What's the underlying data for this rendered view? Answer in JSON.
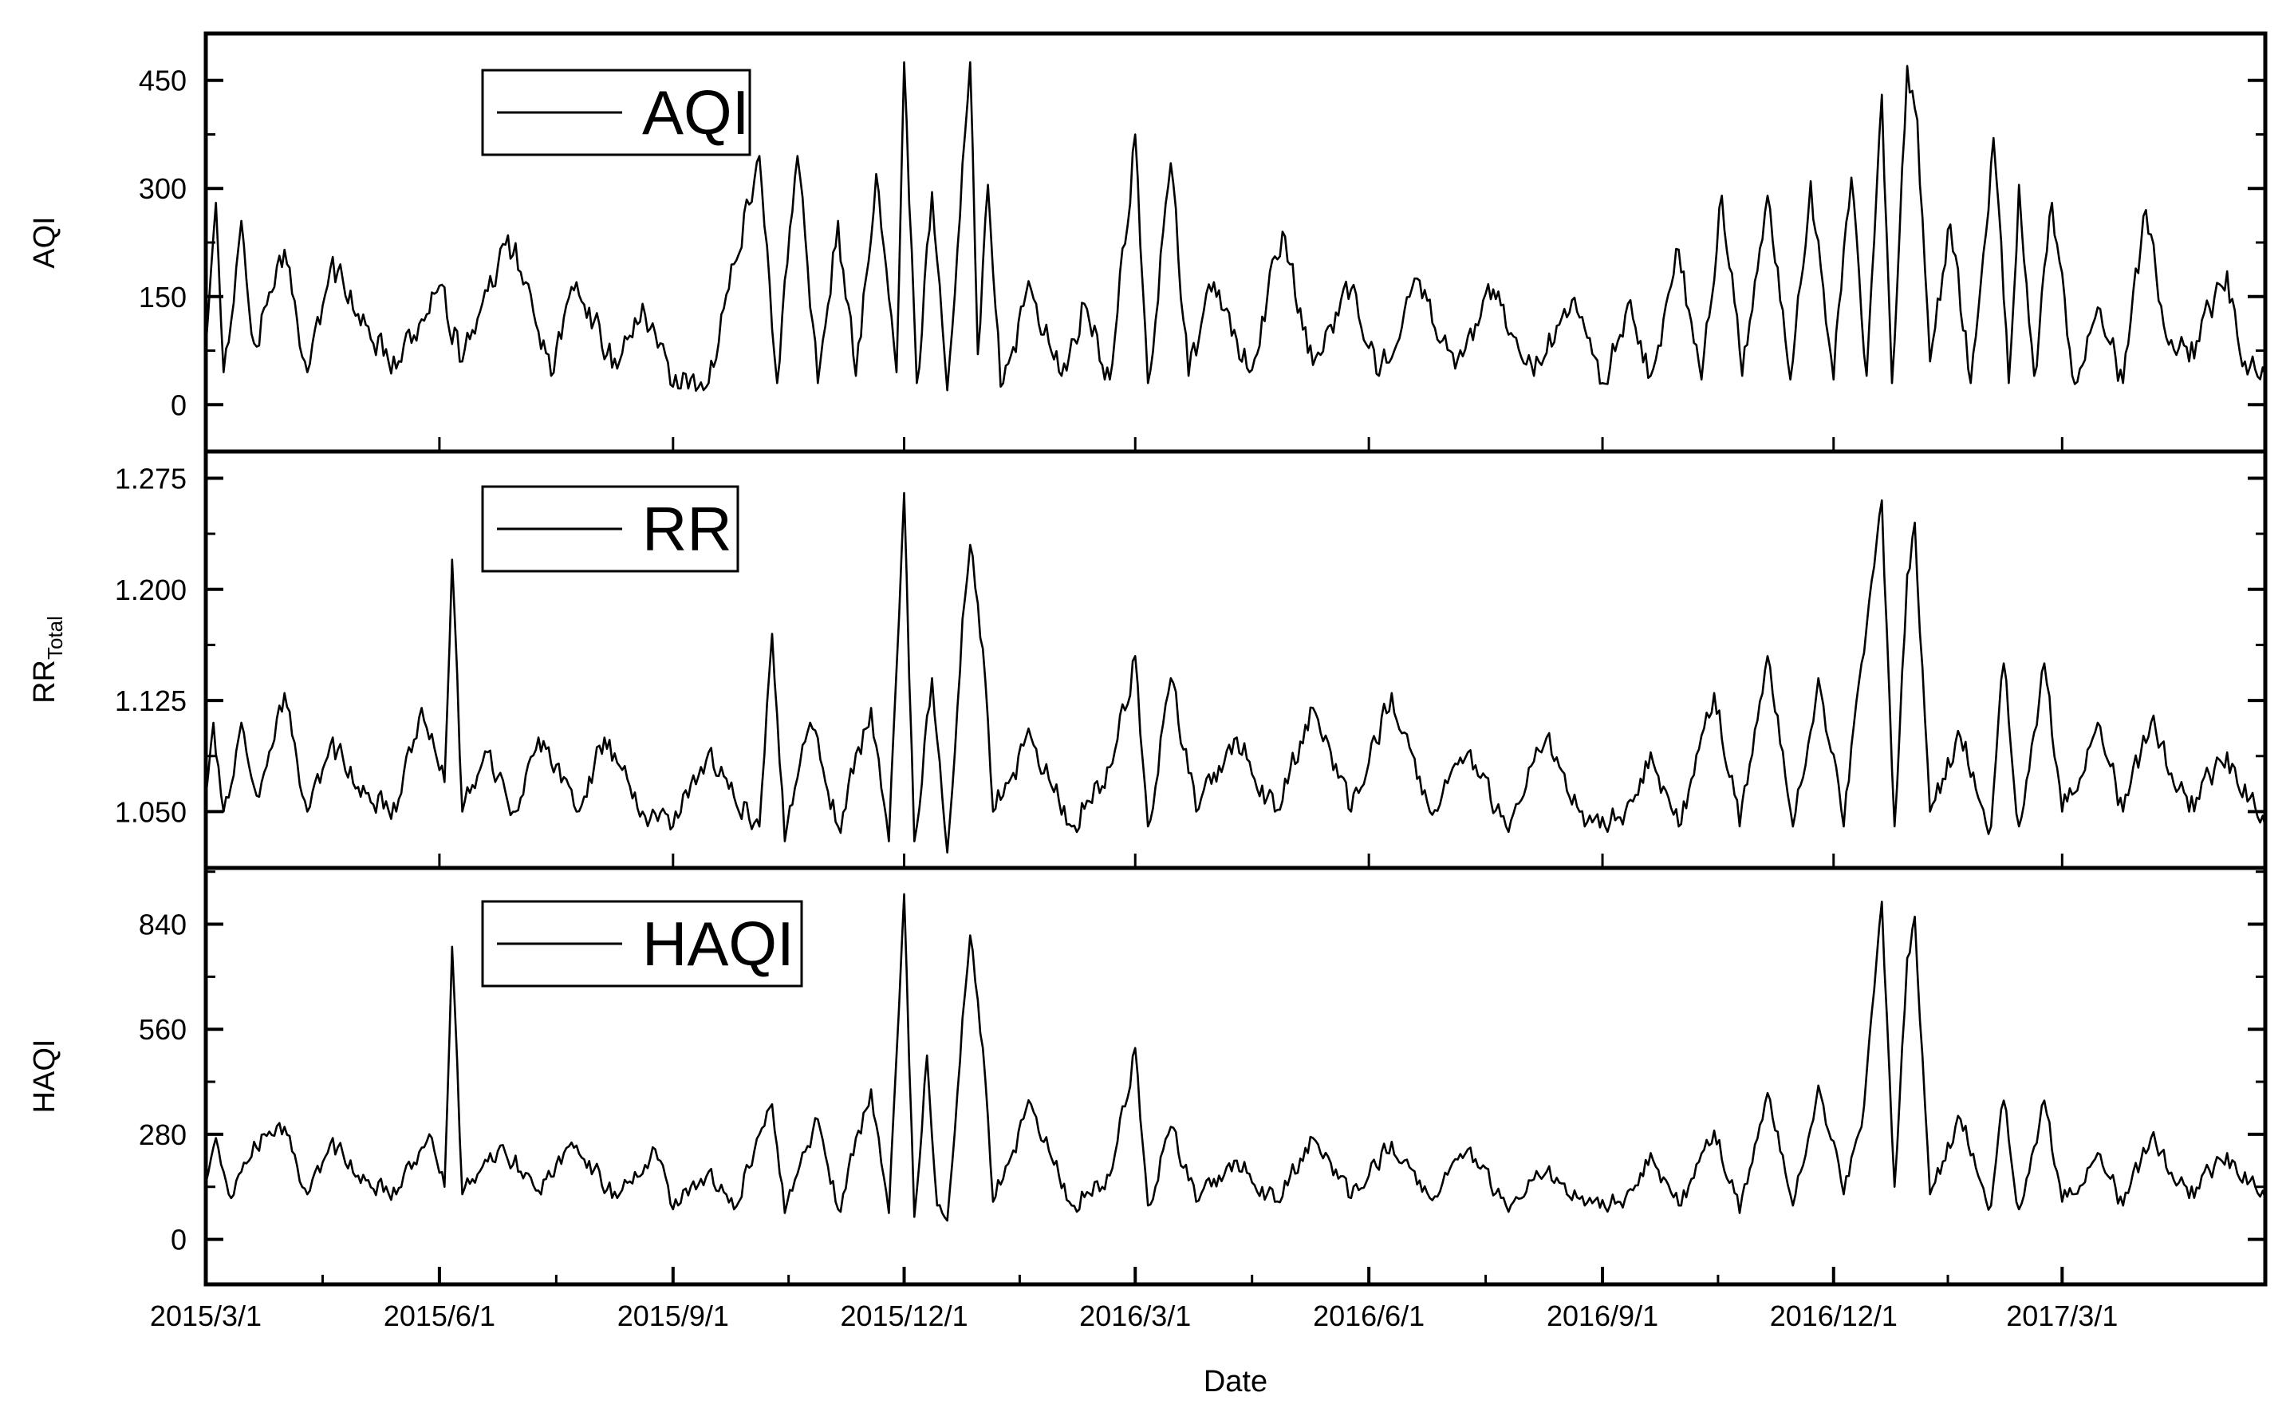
{
  "chart_data": {
    "type": "line",
    "xlabel": "Date",
    "x_range": [
      "2015-03-01",
      "2017-05-20"
    ],
    "x_tick_labels": [
      "2015/3/1",
      "2015/6/1",
      "2015/9/1",
      "2015/12/1",
      "2016/3/1",
      "2016/6/1",
      "2016/9/1",
      "2016/12/1",
      "2017/3/1"
    ],
    "x_tick_dates": [
      "2015-03-01",
      "2015-06-01",
      "2015-09-01",
      "2015-12-01",
      "2016-03-01",
      "2016-06-01",
      "2016-09-01",
      "2016-12-01",
      "2017-03-01"
    ],
    "grid": false,
    "legend_position": "top-left",
    "panels": [
      {
        "id": "aqi",
        "ylabel": "AQI",
        "ylabel_sub": "",
        "legend": "AQI",
        "ylim": [
          -65,
          515
        ],
        "yticks": [
          0,
          150,
          300,
          450
        ],
        "ytick_labels": [
          "0",
          "150",
          "300",
          "450"
        ],
        "key_points": [
          [
            "2015-03-01",
            80
          ],
          [
            "2015-03-05",
            280
          ],
          [
            "2015-03-08",
            45
          ],
          [
            "2015-03-15",
            255
          ],
          [
            "2015-03-20",
            85
          ],
          [
            "2015-04-01",
            215
          ],
          [
            "2015-04-10",
            45
          ],
          [
            "2015-04-20",
            205
          ],
          [
            "2015-05-01",
            110
          ],
          [
            "2015-05-15",
            50
          ],
          [
            "2015-06-01",
            165
          ],
          [
            "2015-06-10",
            60
          ],
          [
            "2015-06-28",
            235
          ],
          [
            "2015-07-05",
            170
          ],
          [
            "2015-07-15",
            40
          ],
          [
            "2015-07-25",
            170
          ],
          [
            "2015-08-10",
            50
          ],
          [
            "2015-08-20",
            140
          ],
          [
            "2015-09-01",
            25
          ],
          [
            "2015-09-15",
            30
          ],
          [
            "2015-09-25",
            195
          ],
          [
            "2015-10-05",
            345
          ],
          [
            "2015-10-12",
            30
          ],
          [
            "2015-10-20",
            345
          ],
          [
            "2015-10-28",
            30
          ],
          [
            "2015-11-05",
            255
          ],
          [
            "2015-11-12",
            40
          ],
          [
            "2015-11-20",
            320
          ],
          [
            "2015-11-28",
            45
          ],
          [
            "2015-12-01",
            475
          ],
          [
            "2015-12-06",
            30
          ],
          [
            "2015-12-12",
            295
          ],
          [
            "2015-12-18",
            20
          ],
          [
            "2015-12-24",
            335
          ],
          [
            "2015-12-27",
            475
          ],
          [
            "2015-12-30",
            70
          ],
          [
            "2016-01-03",
            305
          ],
          [
            "2016-01-08",
            25
          ],
          [
            "2016-01-20",
            160
          ],
          [
            "2016-02-01",
            40
          ],
          [
            "2016-02-10",
            140
          ],
          [
            "2016-02-20",
            35
          ],
          [
            "2016-03-01",
            375
          ],
          [
            "2016-03-06",
            30
          ],
          [
            "2016-03-15",
            335
          ],
          [
            "2016-03-22",
            40
          ],
          [
            "2016-04-01",
            170
          ],
          [
            "2016-04-15",
            45
          ],
          [
            "2016-04-28",
            240
          ],
          [
            "2016-05-10",
            55
          ],
          [
            "2016-05-25",
            160
          ],
          [
            "2016-06-05",
            40
          ],
          [
            "2016-06-20",
            175
          ],
          [
            "2016-07-05",
            50
          ],
          [
            "2016-07-20",
            160
          ],
          [
            "2016-08-05",
            40
          ],
          [
            "2016-08-20",
            145
          ],
          [
            "2016-09-01",
            30
          ],
          [
            "2016-09-12",
            145
          ],
          [
            "2016-09-20",
            40
          ],
          [
            "2016-10-01",
            215
          ],
          [
            "2016-10-10",
            35
          ],
          [
            "2016-10-18",
            290
          ],
          [
            "2016-10-26",
            40
          ],
          [
            "2016-11-05",
            290
          ],
          [
            "2016-11-14",
            35
          ],
          [
            "2016-11-22",
            310
          ],
          [
            "2016-12-01",
            35
          ],
          [
            "2016-12-08",
            315
          ],
          [
            "2016-12-14",
            40
          ],
          [
            "2016-12-20",
            430
          ],
          [
            "2016-12-24",
            30
          ],
          [
            "2016-12-30",
            470
          ],
          [
            "2017-01-03",
            395
          ],
          [
            "2017-01-08",
            60
          ],
          [
            "2017-01-16",
            250
          ],
          [
            "2017-01-24",
            30
          ],
          [
            "2017-02-02",
            370
          ],
          [
            "2017-02-08",
            30
          ],
          [
            "2017-02-12",
            305
          ],
          [
            "2017-02-18",
            40
          ],
          [
            "2017-02-25",
            280
          ],
          [
            "2017-03-05",
            40
          ],
          [
            "2017-03-15",
            135
          ],
          [
            "2017-03-25",
            30
          ],
          [
            "2017-04-03",
            270
          ],
          [
            "2017-04-10",
            110
          ],
          [
            "2017-04-20",
            60
          ],
          [
            "2017-05-05",
            185
          ],
          [
            "2017-05-12",
            60
          ],
          [
            "2017-05-20",
            40
          ]
        ]
      },
      {
        "id": "rr",
        "ylabel": "RR",
        "ylabel_sub": "Total",
        "legend": "RR",
        "ylim": [
          1.012,
          1.293
        ],
        "yticks": [
          1.05,
          1.125,
          1.2,
          1.275
        ],
        "ytick_labels": [
          "1.050",
          "1.125",
          "1.200",
          "1.275"
        ],
        "key_points": [
          [
            "2015-03-01",
            1.06
          ],
          [
            "2015-03-04",
            1.11
          ],
          [
            "2015-03-08",
            1.05
          ],
          [
            "2015-03-15",
            1.11
          ],
          [
            "2015-03-22",
            1.06
          ],
          [
            "2015-04-01",
            1.13
          ],
          [
            "2015-04-10",
            1.05
          ],
          [
            "2015-04-20",
            1.1
          ],
          [
            "2015-05-01",
            1.06
          ],
          [
            "2015-05-15",
            1.05
          ],
          [
            "2015-05-25",
            1.12
          ],
          [
            "2015-06-03",
            1.07
          ],
          [
            "2015-06-06",
            1.22
          ],
          [
            "2015-06-10",
            1.05
          ],
          [
            "2015-06-20",
            1.09
          ],
          [
            "2015-07-01",
            1.05
          ],
          [
            "2015-07-10",
            1.1
          ],
          [
            "2015-07-25",
            1.05
          ],
          [
            "2015-08-05",
            1.1
          ],
          [
            "2015-08-20",
            1.05
          ],
          [
            "2015-09-01",
            1.04
          ],
          [
            "2015-09-15",
            1.09
          ],
          [
            "2015-09-25",
            1.06
          ],
          [
            "2015-10-05",
            1.04
          ],
          [
            "2015-10-10",
            1.17
          ],
          [
            "2015-10-15",
            1.03
          ],
          [
            "2015-10-25",
            1.11
          ],
          [
            "2015-11-05",
            1.04
          ],
          [
            "2015-11-18",
            1.12
          ],
          [
            "2015-11-25",
            1.03
          ],
          [
            "2015-12-01",
            1.265
          ],
          [
            "2015-12-05",
            1.03
          ],
          [
            "2015-12-12",
            1.14
          ],
          [
            "2015-12-18",
            1.02
          ],
          [
            "2015-12-24",
            1.18
          ],
          [
            "2015-12-27",
            1.23
          ],
          [
            "2016-01-01",
            1.16
          ],
          [
            "2016-01-05",
            1.05
          ],
          [
            "2016-01-20",
            1.1
          ],
          [
            "2016-02-05",
            1.04
          ],
          [
            "2016-02-20",
            1.08
          ],
          [
            "2016-03-01",
            1.155
          ],
          [
            "2016-03-06",
            1.04
          ],
          [
            "2016-03-15",
            1.14
          ],
          [
            "2016-03-25",
            1.05
          ],
          [
            "2016-04-10",
            1.1
          ],
          [
            "2016-04-25",
            1.05
          ],
          [
            "2016-05-10",
            1.12
          ],
          [
            "2016-05-25",
            1.05
          ],
          [
            "2016-06-10",
            1.13
          ],
          [
            "2016-06-25",
            1.05
          ],
          [
            "2016-07-10",
            1.09
          ],
          [
            "2016-07-25",
            1.04
          ],
          [
            "2016-08-10",
            1.1
          ],
          [
            "2016-08-25",
            1.04
          ],
          [
            "2016-09-10",
            1.05
          ],
          [
            "2016-09-20",
            1.09
          ],
          [
            "2016-10-01",
            1.04
          ],
          [
            "2016-10-15",
            1.13
          ],
          [
            "2016-10-25",
            1.04
          ],
          [
            "2016-11-05",
            1.155
          ],
          [
            "2016-11-15",
            1.04
          ],
          [
            "2016-11-25",
            1.14
          ],
          [
            "2016-12-05",
            1.04
          ],
          [
            "2016-12-12",
            1.15
          ],
          [
            "2016-12-20",
            1.26
          ],
          [
            "2016-12-25",
            1.04
          ],
          [
            "2016-12-30",
            1.21
          ],
          [
            "2017-01-02",
            1.245
          ],
          [
            "2017-01-08",
            1.05
          ],
          [
            "2017-01-20",
            1.1
          ],
          [
            "2017-02-01",
            1.04
          ],
          [
            "2017-02-06",
            1.15
          ],
          [
            "2017-02-12",
            1.04
          ],
          [
            "2017-02-22",
            1.15
          ],
          [
            "2017-03-01",
            1.05
          ],
          [
            "2017-03-15",
            1.11
          ],
          [
            "2017-03-25",
            1.05
          ],
          [
            "2017-04-05",
            1.11
          ],
          [
            "2017-04-20",
            1.05
          ],
          [
            "2017-05-05",
            1.09
          ],
          [
            "2017-05-20",
            1.04
          ]
        ]
      },
      {
        "id": "haqi",
        "ylabel": "HAQI",
        "ylabel_sub": "",
        "legend": "HAQI",
        "ylim": [
          -120,
          990
        ],
        "yticks": [
          0,
          280,
          560,
          840
        ],
        "ytick_labels": [
          "0",
          "280",
          "560",
          "840"
        ],
        "key_points": [
          [
            "2015-03-01",
            150
          ],
          [
            "2015-03-05",
            270
          ],
          [
            "2015-03-10",
            120
          ],
          [
            "2015-03-20",
            260
          ],
          [
            "2015-04-01",
            300
          ],
          [
            "2015-04-10",
            120
          ],
          [
            "2015-04-20",
            270
          ],
          [
            "2015-05-01",
            150
          ],
          [
            "2015-05-15",
            120
          ],
          [
            "2015-05-28",
            280
          ],
          [
            "2015-06-03",
            140
          ],
          [
            "2015-06-06",
            780
          ],
          [
            "2015-06-10",
            120
          ],
          [
            "2015-06-25",
            250
          ],
          [
            "2015-07-10",
            130
          ],
          [
            "2015-07-25",
            250
          ],
          [
            "2015-08-10",
            110
          ],
          [
            "2015-08-25",
            240
          ],
          [
            "2015-09-01",
            80
          ],
          [
            "2015-09-15",
            180
          ],
          [
            "2015-09-25",
            80
          ],
          [
            "2015-10-05",
            280
          ],
          [
            "2015-10-10",
            360
          ],
          [
            "2015-10-15",
            70
          ],
          [
            "2015-10-28",
            320
          ],
          [
            "2015-11-05",
            80
          ],
          [
            "2015-11-18",
            400
          ],
          [
            "2015-11-25",
            70
          ],
          [
            "2015-12-01",
            920
          ],
          [
            "2015-12-05",
            60
          ],
          [
            "2015-12-10",
            490
          ],
          [
            "2015-12-14",
            90
          ],
          [
            "2015-12-18",
            50
          ],
          [
            "2015-12-24",
            590
          ],
          [
            "2015-12-27",
            810
          ],
          [
            "2016-01-01",
            510
          ],
          [
            "2016-01-05",
            100
          ],
          [
            "2016-01-20",
            360
          ],
          [
            "2016-02-05",
            90
          ],
          [
            "2016-02-20",
            170
          ],
          [
            "2016-03-01",
            510
          ],
          [
            "2016-03-06",
            90
          ],
          [
            "2016-03-15",
            300
          ],
          [
            "2016-03-25",
            100
          ],
          [
            "2016-04-10",
            210
          ],
          [
            "2016-04-25",
            100
          ],
          [
            "2016-05-10",
            270
          ],
          [
            "2016-05-25",
            110
          ],
          [
            "2016-06-10",
            260
          ],
          [
            "2016-06-25",
            110
          ],
          [
            "2016-07-10",
            240
          ],
          [
            "2016-07-25",
            90
          ],
          [
            "2016-08-10",
            180
          ],
          [
            "2016-08-25",
            90
          ],
          [
            "2016-09-10",
            110
          ],
          [
            "2016-09-20",
            230
          ],
          [
            "2016-10-01",
            90
          ],
          [
            "2016-10-15",
            290
          ],
          [
            "2016-10-25",
            70
          ],
          [
            "2016-11-05",
            390
          ],
          [
            "2016-11-15",
            90
          ],
          [
            "2016-11-25",
            410
          ],
          [
            "2016-12-05",
            120
          ],
          [
            "2016-12-12",
            300
          ],
          [
            "2016-12-20",
            900
          ],
          [
            "2016-12-25",
            140
          ],
          [
            "2016-12-30",
            750
          ],
          [
            "2017-01-02",
            860
          ],
          [
            "2017-01-08",
            120
          ],
          [
            "2017-01-20",
            320
          ],
          [
            "2017-02-01",
            90
          ],
          [
            "2017-02-06",
            370
          ],
          [
            "2017-02-12",
            80
          ],
          [
            "2017-02-22",
            370
          ],
          [
            "2017-03-01",
            100
          ],
          [
            "2017-03-15",
            230
          ],
          [
            "2017-03-25",
            90
          ],
          [
            "2017-04-05",
            270
          ],
          [
            "2017-04-20",
            110
          ],
          [
            "2017-05-05",
            230
          ],
          [
            "2017-05-20",
            110
          ]
        ]
      }
    ]
  }
}
